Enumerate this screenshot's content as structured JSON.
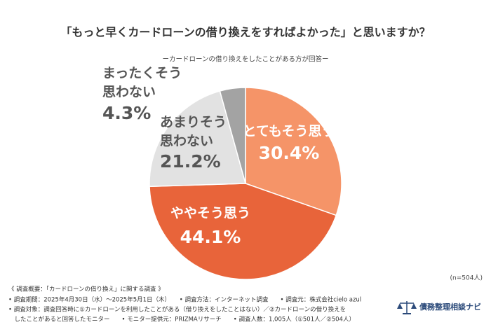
{
  "chart_data": {
    "type": "pie",
    "title": "「もっと早くカードローンの借り換えをすればよかった」と思いますか？",
    "subtitle": "ーカードローンの借り換えをしたことがある方が回答ー",
    "categories": [
      [
        "とてもそう思う"
      ],
      [
        "ややそう思う"
      ],
      [
        "あまりそう",
        "思わない"
      ],
      [
        "まったくそう",
        "思わない"
      ]
    ],
    "values": [
      30.4,
      44.1,
      21.2,
      4.3
    ],
    "value_labels": [
      "30.4%",
      "44.1%",
      "21.2%",
      "4.3%"
    ],
    "colors": [
      "#f59468",
      "#e8643a",
      "#e2e2e2",
      "#a3a3a3"
    ],
    "sample_note": "(n=504人)",
    "notes": [
      "《 調査概要：「カードローンの借り換え」に関する調査 》",
      "• 調査期間：2025年4月30日（水）～2025年5月1日（木）　　• 調査方法：インターネット調査　　• 調査元：株式会社cielo azul",
      "• 調査対象：調査回答時に①カードローンを利用したことがある（借り換えをしたことはない）／②カードローンの借り換えを",
      "　したことがあると回答したモニター　　• モニター提供元：PRIZMAリサーチ　　• 調査人数：1,005人（①501人／②504人）"
    ],
    "brand": "債務整理相談ナビ"
  }
}
